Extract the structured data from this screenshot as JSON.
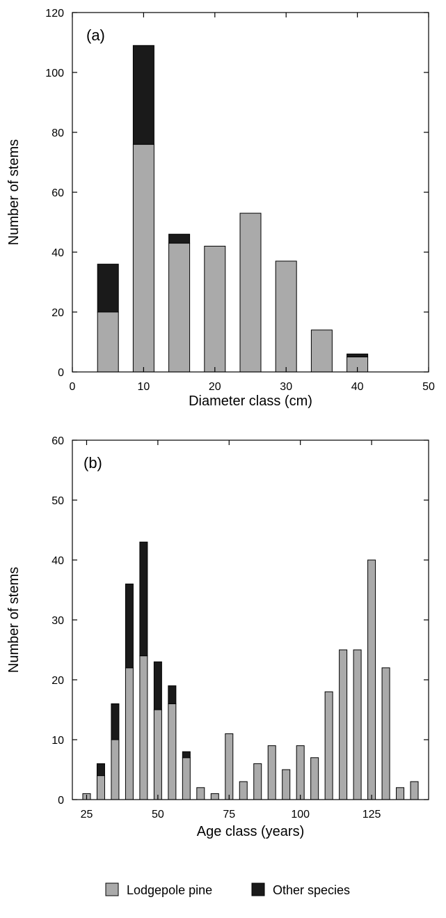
{
  "chart_data": [
    {
      "type": "bar",
      "panel_label": "(a)",
      "xlabel": "Diameter class (cm)",
      "ylabel": "Number of stems",
      "xlim": [
        0,
        50
      ],
      "ylim": [
        0,
        120
      ],
      "xticks": [
        0,
        10,
        20,
        30,
        40,
        50
      ],
      "yticks": [
        0,
        20,
        40,
        60,
        80,
        100,
        120
      ],
      "stacked": true,
      "x": [
        5,
        10,
        15,
        20,
        25,
        30,
        35,
        40
      ],
      "series": [
        {
          "name": "Lodgepole pine",
          "color": "#aaaaaa",
          "values": [
            20,
            76,
            43,
            42,
            53,
            37,
            14,
            5
          ]
        },
        {
          "name": "Other species",
          "color": "#1a1a1a",
          "values": [
            16,
            33,
            3,
            0,
            0,
            0,
            0,
            1
          ]
        }
      ],
      "grid": false
    },
    {
      "type": "bar",
      "panel_label": "(b)",
      "xlabel": "Age class (years)",
      "ylabel": "Number of stems",
      "xlim": [
        20,
        145
      ],
      "ylim": [
        0,
        60
      ],
      "xticks": [
        25,
        50,
        75,
        100,
        125
      ],
      "yticks": [
        0,
        10,
        20,
        30,
        40,
        50,
        60
      ],
      "stacked": true,
      "x": [
        25,
        30,
        35,
        40,
        45,
        50,
        55,
        60,
        65,
        70,
        75,
        80,
        85,
        90,
        95,
        100,
        105,
        110,
        115,
        120,
        125,
        130,
        135,
        140
      ],
      "series": [
        {
          "name": "Lodgepole pine",
          "color": "#aaaaaa",
          "values": [
            1,
            4,
            10,
            22,
            24,
            15,
            16,
            7,
            2,
            1,
            11,
            3,
            6,
            9,
            5,
            9,
            7,
            18,
            25,
            25,
            40,
            22,
            2,
            3
          ]
        },
        {
          "name": "Other species",
          "color": "#1a1a1a",
          "values": [
            0,
            2,
            6,
            14,
            19,
            8,
            3,
            1,
            0,
            0,
            0,
            0,
            0,
            0,
            0,
            0,
            0,
            0,
            0,
            0,
            0,
            0,
            0,
            0
          ]
        }
      ],
      "grid": false
    }
  ],
  "legend": {
    "placement": "bottom-center",
    "items": [
      {
        "label": "Lodgepole pine",
        "color": "#aaaaaa"
      },
      {
        "label": "Other species",
        "color": "#1a1a1a"
      }
    ]
  }
}
